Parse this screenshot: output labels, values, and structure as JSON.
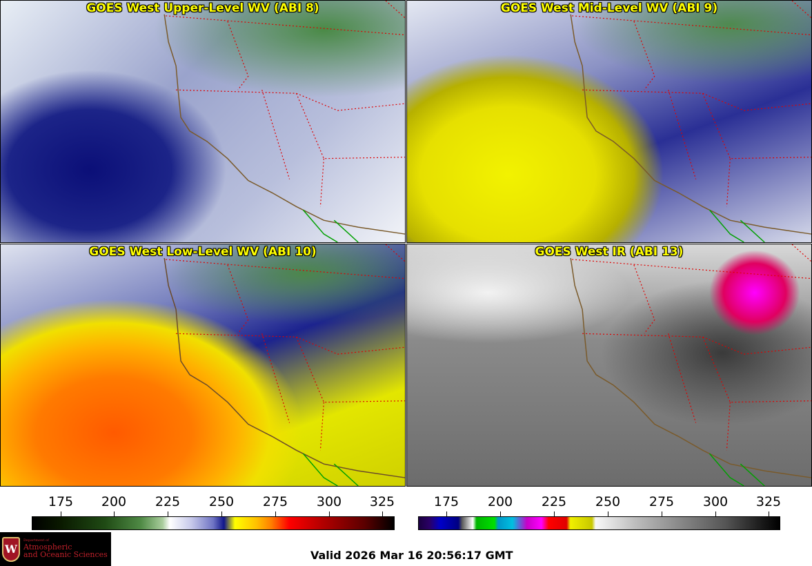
{
  "panels": [
    {
      "title": "GOES West Upper-Level WV (ABI 8)"
    },
    {
      "title": "GOES West Mid-Level WV (ABI 9)"
    },
    {
      "title": "GOES West Low-Level WV (ABI 10)"
    },
    {
      "title": "GOES West IR (ABI 13)"
    }
  ],
  "colorbars": {
    "left_ticks": [
      "175",
      "200",
      "225",
      "250",
      "275",
      "300",
      "325"
    ],
    "right_ticks": [
      "175",
      "200",
      "225",
      "250",
      "275",
      "300",
      "325"
    ]
  },
  "logo": {
    "dept": "Department of",
    "line1": "Atmospheric",
    "line2": "and Oceanic Sciences",
    "icon": "uw-crest-icon"
  },
  "valid_time": "Valid 2026 Mar 16 20:56:17 GMT"
}
